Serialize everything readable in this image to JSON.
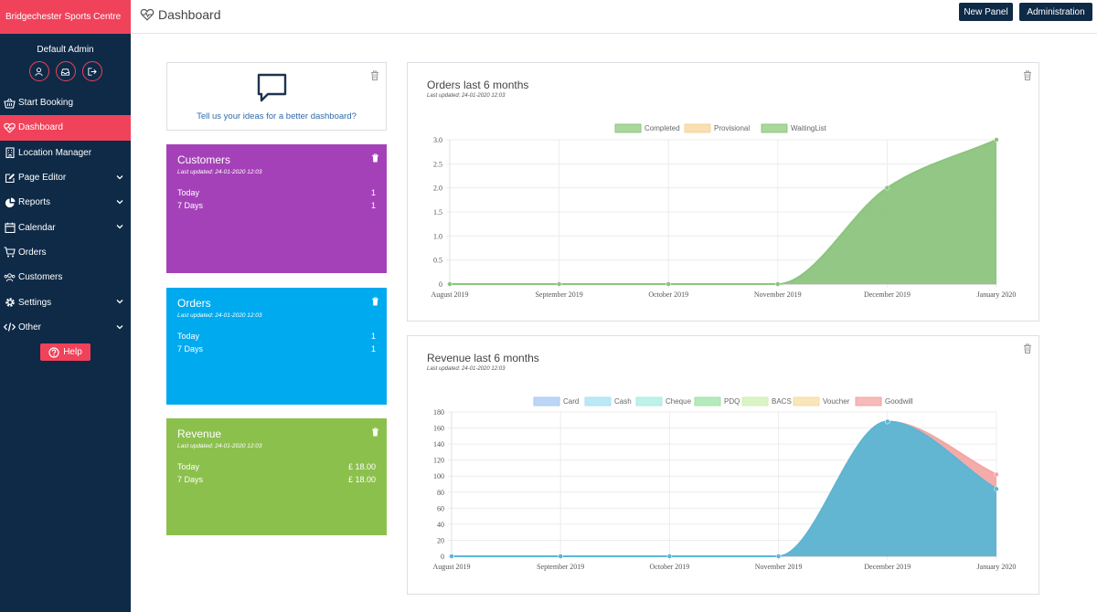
{
  "sidebar": {
    "brand": "Bridgechester Sports Centre",
    "user_name": "Default Admin",
    "items": [
      {
        "label": "Start Booking"
      },
      {
        "label": "Dashboard"
      },
      {
        "label": "Location Manager"
      },
      {
        "label": "Page Editor"
      },
      {
        "label": "Reports"
      },
      {
        "label": "Calendar"
      },
      {
        "label": "Orders"
      },
      {
        "label": "Customers"
      },
      {
        "label": "Settings"
      },
      {
        "label": "Other"
      }
    ],
    "help_label": "Help"
  },
  "header": {
    "title": "Dashboard",
    "new_panel_label": "New Panel",
    "administration_label": "Administration"
  },
  "idea_panel": {
    "link_text": "Tell us your ideas for a better dashboard?"
  },
  "panels": {
    "customers": {
      "title": "Customers",
      "updated": "Last updated: 24-01-2020 12:03",
      "today_label": "Today",
      "today_value": "1",
      "week_label": "7 Days",
      "week_value": "1",
      "color": "#a541b8"
    },
    "orders": {
      "title": "Orders",
      "updated": "Last updated: 24-01-2020 12:03",
      "today_label": "Today",
      "today_value": "1",
      "week_label": "7 Days",
      "week_value": "1",
      "color": "#00aaef"
    },
    "revenue": {
      "title": "Revenue",
      "updated": "Last updated: 24-01-2020 12:03",
      "today_label": "Today",
      "today_value": "£ 18.00",
      "week_label": "7 Days",
      "week_value": "£ 18.00",
      "color": "#8cc04d"
    }
  },
  "chart_data": [
    {
      "type": "area",
      "title": "Orders last 6 months",
      "updated": "Last updated: 24-01-2020 12:03",
      "categories": [
        "August 2019",
        "September 2019",
        "October 2019",
        "November 2019",
        "December 2019",
        "January 2020"
      ],
      "ylim": [
        0,
        3.0
      ],
      "yticks": [
        "0",
        "0.5",
        "1.0",
        "1.5",
        "2.0",
        "2.5",
        "3.0"
      ],
      "legend": [
        {
          "name": "Completed",
          "color": "#8cca7c"
        },
        {
          "name": "Provisional",
          "color": "#f6d59a"
        },
        {
          "name": "WaitingList",
          "color": "#8cca7c"
        }
      ],
      "series": [
        {
          "name": "Completed",
          "values": [
            0,
            0,
            0,
            0,
            2,
            3
          ],
          "color": "#8cc47e"
        }
      ]
    },
    {
      "type": "area",
      "title": "Revenue last 6 months",
      "updated": "Last updated: 24-01-2020 12:03",
      "categories": [
        "August 2019",
        "September 2019",
        "October 2019",
        "November 2019",
        "December 2019",
        "January 2020"
      ],
      "ylim": [
        0,
        180
      ],
      "yticks": [
        "0",
        "20",
        "40",
        "60",
        "80",
        "100",
        "120",
        "140",
        "160",
        "180"
      ],
      "legend": [
        {
          "name": "Card",
          "color": "#a7c8f2"
        },
        {
          "name": "Cash",
          "color": "#a4e2f1"
        },
        {
          "name": "Cheque",
          "color": "#a7ece2"
        },
        {
          "name": "PDQ",
          "color": "#9de3a5"
        },
        {
          "name": "BACS",
          "color": "#cdf0b3"
        },
        {
          "name": "Voucher",
          "color": "#f6dca2"
        },
        {
          "name": "Goodwill",
          "color": "#f3a3a3"
        }
      ],
      "series": [
        {
          "name": "Goodwill",
          "values": [
            0,
            0,
            0,
            0,
            168,
            102
          ],
          "color": "#f4a6a4"
        },
        {
          "name": "Cash",
          "values": [
            0,
            0,
            0,
            0,
            168,
            84
          ],
          "color": "#5bb6d3"
        }
      ]
    }
  ]
}
